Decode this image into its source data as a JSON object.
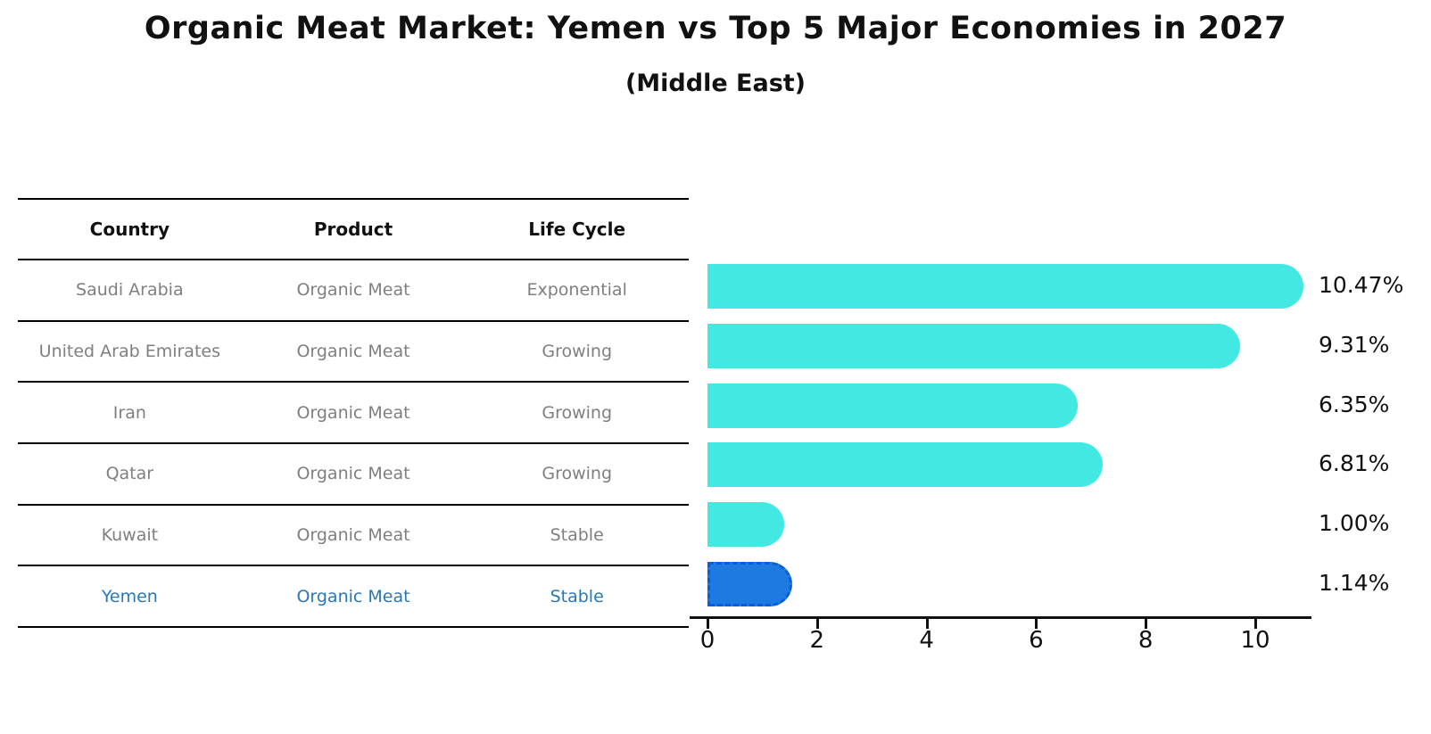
{
  "title": "Organic Meat Market: Yemen vs Top 5 Major Economies in 2027",
  "subtitle": "(Middle East)",
  "table": {
    "headers": [
      "Country",
      "Product",
      "Life Cycle"
    ],
    "rows": [
      {
        "country": "Saudi Arabia",
        "product": "Organic Meat",
        "life_cycle": "Exponential",
        "highlight": false
      },
      {
        "country": "United Arab Emirates",
        "product": "Organic Meat",
        "life_cycle": "Growing",
        "highlight": false
      },
      {
        "country": "Iran",
        "product": "Organic Meat",
        "life_cycle": "Growing",
        "highlight": false
      },
      {
        "country": "Qatar",
        "product": "Organic Meat",
        "life_cycle": "Growing",
        "highlight": false
      },
      {
        "country": "Kuwait",
        "product": "Organic Meat",
        "life_cycle": "Stable",
        "highlight": false
      },
      {
        "country": "Yemen",
        "product": "Organic Meat",
        "life_cycle": "Stable",
        "highlight": true
      }
    ]
  },
  "chart_data": {
    "type": "bar",
    "orientation": "horizontal",
    "title": "Organic Meat Market: Yemen vs Top 5 Major Economies in 2027",
    "subtitle": "(Middle East)",
    "categories": [
      "Saudi Arabia",
      "United Arab Emirates",
      "Iran",
      "Qatar",
      "Kuwait",
      "Yemen"
    ],
    "values": [
      10.47,
      9.31,
      6.35,
      6.81,
      1.0,
      1.14
    ],
    "value_labels": [
      "10.47%",
      "9.31%",
      "6.35%",
      "6.81%",
      "1.00%",
      "1.14%"
    ],
    "xticks": [
      0,
      2,
      4,
      6,
      8,
      10
    ],
    "xlim": [
      0,
      11
    ],
    "grid": false,
    "legend": "none",
    "bar_color": "#42e8e2",
    "highlight_index": 5,
    "highlight_color": "#1e7ae0",
    "highlight_border_color": "#0b5ed7",
    "highlight_text_color": "#2878b9",
    "text_color": "#111111",
    "muted_text_color": "#7f7f7f"
  }
}
